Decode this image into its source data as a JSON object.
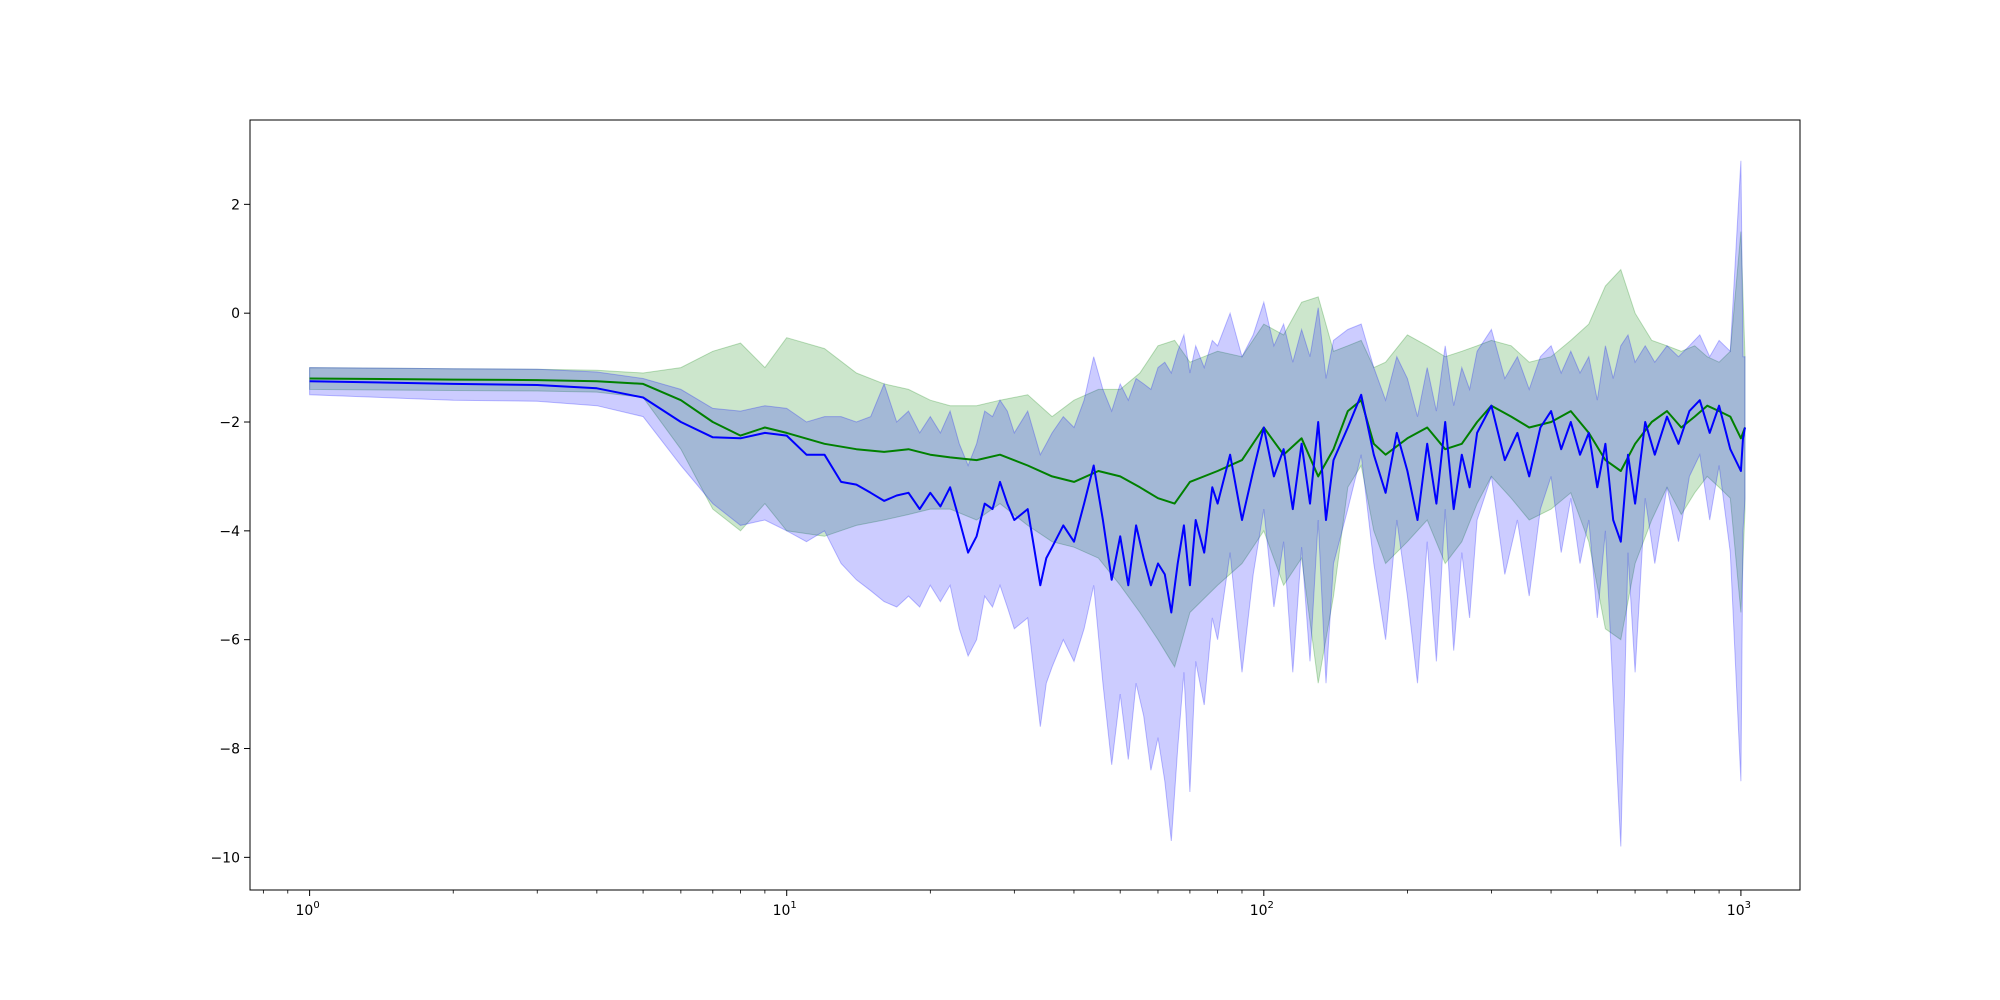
{
  "chart_data": {
    "type": "line",
    "title": "",
    "xlabel": "",
    "ylabel": "",
    "xscale": "log",
    "xlim": [
      0.75,
      1330
    ],
    "ylim": [
      -10.6,
      3.55
    ],
    "grid": false,
    "legend": "none",
    "x_ticks": [
      {
        "value": 1,
        "base": "10",
        "exp": "0"
      },
      {
        "value": 10,
        "base": "10",
        "exp": "1"
      },
      {
        "value": 100,
        "base": "10",
        "exp": "2"
      },
      {
        "value": 1000,
        "base": "10",
        "exp": "3"
      }
    ],
    "y_ticks": [
      {
        "value": 2,
        "label": "2"
      },
      {
        "value": 0,
        "label": "0"
      },
      {
        "value": -2,
        "label": "−2"
      },
      {
        "value": -4,
        "label": "−4"
      },
      {
        "value": -6,
        "label": "−6"
      },
      {
        "value": -8,
        "label": "−8"
      },
      {
        "value": -10,
        "label": "−10"
      }
    ],
    "series": [
      {
        "color": "#008000",
        "band_color": "#008000",
        "band_opacity": 0.2,
        "x": [
          1,
          2,
          3,
          4,
          5,
          6,
          7,
          8,
          9,
          10,
          12,
          14,
          16,
          18,
          20,
          22,
          25,
          28,
          32,
          36,
          40,
          45,
          50,
          55,
          60,
          65,
          70,
          80,
          90,
          100,
          110,
          120,
          130,
          140,
          150,
          160,
          170,
          180,
          200,
          220,
          240,
          260,
          280,
          300,
          330,
          360,
          400,
          440,
          480,
          520,
          560,
          600,
          650,
          700,
          750,
          800,
          850,
          900,
          950,
          1000,
          1020
        ],
        "y": [
          -1.2,
          -1.22,
          -1.23,
          -1.25,
          -1.3,
          -1.6,
          -2.0,
          -2.25,
          -2.1,
          -2.2,
          -2.4,
          -2.5,
          -2.55,
          -2.5,
          -2.6,
          -2.65,
          -2.7,
          -2.6,
          -2.8,
          -3.0,
          -3.1,
          -2.9,
          -3.0,
          -3.2,
          -3.4,
          -3.5,
          -3.1,
          -2.9,
          -2.7,
          -2.1,
          -2.6,
          -2.3,
          -3.0,
          -2.5,
          -1.8,
          -1.6,
          -2.4,
          -2.6,
          -2.3,
          -2.1,
          -2.5,
          -2.4,
          -2.0,
          -1.7,
          -1.9,
          -2.1,
          -2.0,
          -1.8,
          -2.2,
          -2.7,
          -2.9,
          -2.4,
          -2.0,
          -1.8,
          -2.1,
          -1.9,
          -1.7,
          -1.8,
          -1.9,
          -2.3,
          -2.1
        ],
        "y_low": [
          -1.4,
          -1.42,
          -1.43,
          -1.45,
          -1.55,
          -2.5,
          -3.6,
          -4.0,
          -3.5,
          -4.0,
          -4.1,
          -3.9,
          -3.8,
          -3.7,
          -3.6,
          -3.6,
          -3.8,
          -3.5,
          -3.9,
          -4.2,
          -4.3,
          -4.5,
          -5.0,
          -5.5,
          -6.0,
          -6.5,
          -5.5,
          -5.0,
          -4.6,
          -4.0,
          -5.0,
          -4.5,
          -6.8,
          -5.2,
          -3.2,
          -2.8,
          -4.0,
          -4.6,
          -4.2,
          -3.8,
          -4.6,
          -4.2,
          -3.5,
          -3.0,
          -3.4,
          -3.8,
          -3.6,
          -3.3,
          -4.2,
          -5.8,
          -6.0,
          -4.6,
          -3.8,
          -3.2,
          -3.7,
          -3.3,
          -3.0,
          -3.2,
          -3.4,
          -5.5,
          -3.6
        ],
        "y_high": [
          -1.0,
          -1.02,
          -1.03,
          -1.05,
          -1.1,
          -1.0,
          -0.7,
          -0.55,
          -1.0,
          -0.45,
          -0.65,
          -1.1,
          -1.3,
          -1.4,
          -1.6,
          -1.7,
          -1.7,
          -1.6,
          -1.5,
          -1.9,
          -1.6,
          -1.4,
          -1.4,
          -1.1,
          -0.6,
          -0.5,
          -0.9,
          -0.7,
          -0.8,
          -0.2,
          -0.4,
          0.2,
          0.3,
          -0.7,
          -0.6,
          -0.5,
          -1.0,
          -0.9,
          -0.4,
          -0.6,
          -0.8,
          -0.7,
          -0.6,
          -0.5,
          -0.6,
          -0.9,
          -0.8,
          -0.5,
          -0.2,
          0.5,
          0.8,
          0.0,
          -0.5,
          -0.6,
          -0.7,
          -0.6,
          -0.8,
          -0.9,
          -0.7,
          1.5,
          -0.8
        ]
      },
      {
        "color": "#0000ff",
        "band_color": "#0000ff",
        "band_opacity": 0.2,
        "x": [
          1,
          2,
          3,
          4,
          5,
          6,
          7,
          8,
          9,
          10,
          11,
          12,
          13,
          14,
          15,
          16,
          17,
          18,
          19,
          20,
          21,
          22,
          23,
          24,
          25,
          26,
          27,
          28,
          29,
          30,
          32,
          34,
          35,
          36,
          38,
          40,
          42,
          44,
          46,
          48,
          50,
          52,
          54,
          56,
          58,
          60,
          62,
          64,
          66,
          68,
          70,
          72,
          75,
          78,
          80,
          85,
          90,
          95,
          100,
          105,
          110,
          115,
          120,
          125,
          130,
          135,
          140,
          150,
          160,
          170,
          180,
          190,
          200,
          210,
          220,
          230,
          240,
          250,
          260,
          270,
          280,
          300,
          320,
          340,
          360,
          380,
          400,
          420,
          440,
          460,
          480,
          500,
          520,
          540,
          560,
          580,
          600,
          630,
          660,
          700,
          740,
          780,
          820,
          860,
          900,
          950,
          1000,
          1010,
          1020
        ],
        "y": [
          -1.25,
          -1.3,
          -1.32,
          -1.38,
          -1.55,
          -2.0,
          -2.28,
          -2.3,
          -2.2,
          -2.25,
          -2.6,
          -2.6,
          -3.1,
          -3.15,
          -3.3,
          -3.45,
          -3.35,
          -3.3,
          -3.6,
          -3.3,
          -3.55,
          -3.2,
          -3.8,
          -4.4,
          -4.1,
          -3.5,
          -3.6,
          -3.1,
          -3.5,
          -3.8,
          -3.6,
          -5.0,
          -4.5,
          -4.3,
          -3.9,
          -4.2,
          -3.5,
          -2.8,
          -3.8,
          -4.9,
          -4.1,
          -5.0,
          -3.9,
          -4.5,
          -5.0,
          -4.6,
          -4.8,
          -5.5,
          -4.6,
          -3.9,
          -5.0,
          -3.8,
          -4.4,
          -3.2,
          -3.5,
          -2.6,
          -3.8,
          -2.9,
          -2.1,
          -3.0,
          -2.5,
          -3.6,
          -2.4,
          -3.5,
          -2.0,
          -3.8,
          -2.7,
          -2.1,
          -1.5,
          -2.6,
          -3.3,
          -2.2,
          -2.9,
          -3.8,
          -2.4,
          -3.5,
          -2.0,
          -3.6,
          -2.6,
          -3.2,
          -2.2,
          -1.7,
          -2.7,
          -2.2,
          -3.0,
          -2.1,
          -1.8,
          -2.5,
          -2.0,
          -2.6,
          -2.2,
          -3.2,
          -2.4,
          -3.8,
          -4.2,
          -2.6,
          -3.5,
          -2.0,
          -2.6,
          -1.9,
          -2.4,
          -1.8,
          -1.6,
          -2.2,
          -1.7,
          -2.5,
          -2.9,
          -2.3,
          -2.1
        ],
        "y_low": [
          -1.5,
          -1.6,
          -1.62,
          -1.7,
          -1.9,
          -2.8,
          -3.5,
          -3.9,
          -3.8,
          -4.0,
          -4.2,
          -4.0,
          -4.6,
          -4.9,
          -5.1,
          -5.3,
          -5.4,
          -5.2,
          -5.4,
          -5.0,
          -5.3,
          -5.0,
          -5.8,
          -6.3,
          -6.0,
          -5.2,
          -5.4,
          -5.0,
          -5.4,
          -5.8,
          -5.6,
          -7.6,
          -6.8,
          -6.5,
          -6.0,
          -6.4,
          -5.8,
          -5.0,
          -6.8,
          -8.3,
          -7.0,
          -8.2,
          -6.8,
          -7.4,
          -8.4,
          -7.8,
          -8.6,
          -9.7,
          -8.0,
          -6.6,
          -8.8,
          -6.4,
          -7.2,
          -5.6,
          -6.0,
          -4.4,
          -6.6,
          -4.8,
          -3.6,
          -5.4,
          -4.2,
          -6.6,
          -4.3,
          -6.4,
          -3.8,
          -6.8,
          -4.6,
          -3.6,
          -2.6,
          -4.6,
          -6.0,
          -3.8,
          -5.2,
          -6.8,
          -4.2,
          -6.4,
          -3.6,
          -6.2,
          -4.4,
          -5.6,
          -3.8,
          -3.0,
          -4.8,
          -3.8,
          -5.2,
          -3.6,
          -3.0,
          -4.4,
          -3.4,
          -4.6,
          -3.8,
          -5.6,
          -4.0,
          -7.0,
          -9.8,
          -4.4,
          -6.6,
          -3.4,
          -4.6,
          -3.2,
          -4.2,
          -3.0,
          -2.6,
          -3.8,
          -2.8,
          -4.4,
          -8.6,
          -4.0,
          -3.4
        ],
        "y_high": [
          -1.0,
          -1.02,
          -1.03,
          -1.08,
          -1.2,
          -1.4,
          -1.75,
          -1.8,
          -1.7,
          -1.75,
          -2.0,
          -1.9,
          -1.9,
          -2.0,
          -1.9,
          -1.3,
          -2.0,
          -1.8,
          -2.2,
          -1.9,
          -2.2,
          -1.8,
          -2.4,
          -2.8,
          -2.4,
          -1.8,
          -1.9,
          -1.6,
          -1.8,
          -2.2,
          -1.8,
          -2.6,
          -2.4,
          -2.2,
          -1.9,
          -2.1,
          -1.6,
          -0.8,
          -1.4,
          -1.8,
          -1.3,
          -1.6,
          -1.2,
          -1.3,
          -1.4,
          -1.0,
          -0.9,
          -1.1,
          -0.7,
          -0.4,
          -1.1,
          -0.6,
          -1.0,
          -0.5,
          -0.6,
          0.0,
          -0.8,
          -0.4,
          0.2,
          -0.6,
          -0.2,
          -0.9,
          -0.3,
          -0.8,
          0.1,
          -1.2,
          -0.5,
          -0.3,
          -0.2,
          -1.0,
          -1.6,
          -0.8,
          -1.2,
          -1.9,
          -1.0,
          -1.8,
          -0.6,
          -1.7,
          -1.0,
          -1.4,
          -0.7,
          -0.3,
          -1.2,
          -0.8,
          -1.4,
          -0.8,
          -0.6,
          -1.1,
          -0.7,
          -1.1,
          -0.8,
          -1.6,
          -0.6,
          -1.2,
          -0.6,
          -0.4,
          -0.9,
          -0.6,
          -0.9,
          -0.6,
          -0.8,
          -0.6,
          -0.4,
          -0.8,
          -0.5,
          -0.7,
          2.8,
          -0.8,
          -0.8
        ]
      }
    ]
  }
}
